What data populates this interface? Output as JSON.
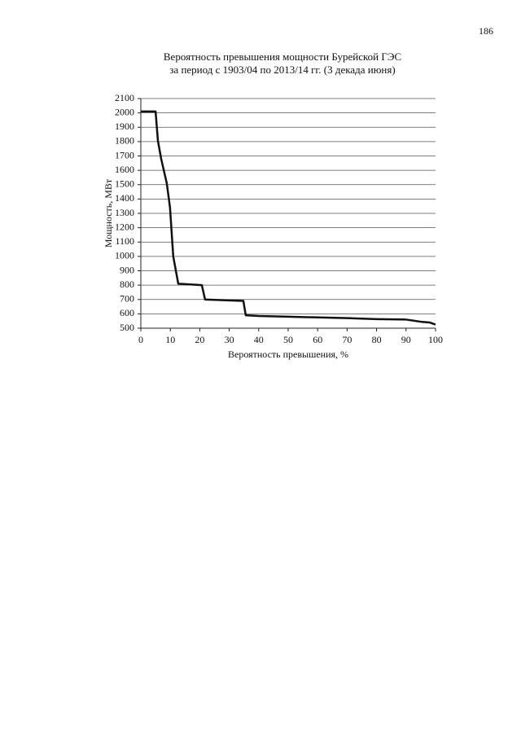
{
  "page_number": "186",
  "chart_data": {
    "type": "line",
    "title": [
      "Вероятность превышения мощности Бурейской ГЭС",
      "за период с 1903/04 по 2013/14 гг. (3 декада июня)"
    ],
    "x_label": "Вероятность превышения, %",
    "y_label": "Мощность, МВт",
    "x": [
      0,
      5,
      5.8,
      6.9,
      8.8,
      9.9,
      11,
      12.7,
      20.7,
      21.8,
      34.8,
      35.6,
      40,
      50,
      60,
      70,
      80,
      90,
      95,
      98,
      100
    ],
    "series": [
      {
        "name": "Мощность",
        "color": "#111111",
        "values": [
          2010,
          2010,
          1805,
          1680,
          1510,
          1340,
          1000,
          810,
          800,
          700,
          690,
          590,
          585,
          580,
          575,
          570,
          563,
          560,
          545,
          540,
          525
        ]
      }
    ],
    "xlim": [
      0,
      100
    ],
    "xticks": [
      0,
      10,
      20,
      30,
      40,
      50,
      60,
      70,
      80,
      90,
      100
    ],
    "ylim": [
      500,
      2100
    ],
    "yticks": [
      500,
      600,
      700,
      800,
      900,
      1000,
      1100,
      1200,
      1300,
      1400,
      1500,
      1600,
      1700,
      1800,
      1900,
      2000,
      2100
    ],
    "grid": true
  }
}
